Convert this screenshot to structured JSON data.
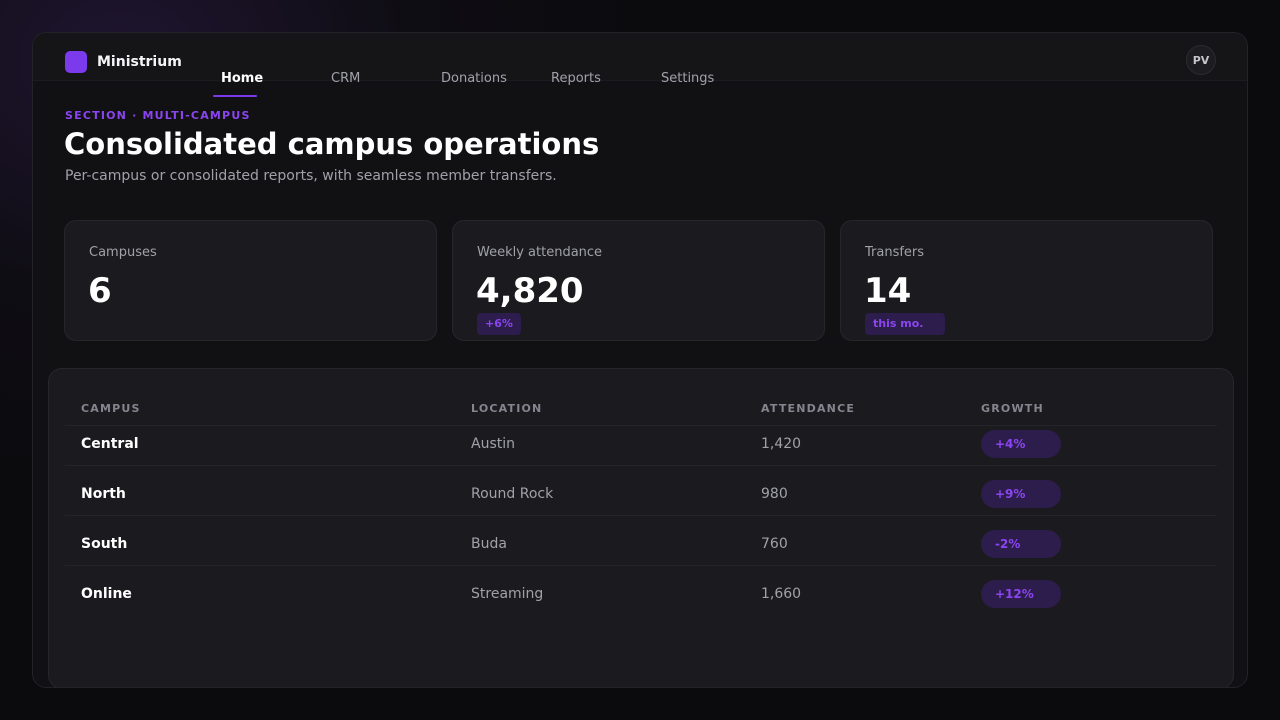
{
  "brand": {
    "name": "Ministrium"
  },
  "nav": {
    "items": [
      {
        "label": "Home",
        "active": true
      },
      {
        "label": "CRM",
        "active": false
      },
      {
        "label": "Donations",
        "active": false
      },
      {
        "label": "Reports",
        "active": false
      },
      {
        "label": "Settings",
        "active": false
      }
    ]
  },
  "user": {
    "initials": "PV"
  },
  "header": {
    "eyebrow": "SECTION · MULTI-CAMPUS",
    "title": "Consolidated campus operations",
    "subtitle": "Per-campus or consolidated reports, with seamless member transfers."
  },
  "stats": [
    {
      "label": "Campuses",
      "value": "6",
      "badge": ""
    },
    {
      "label": "Weekly attendance",
      "value": "4,820",
      "badge": "+6%"
    },
    {
      "label": "Transfers",
      "value": "14",
      "badge": "this mo."
    }
  ],
  "table": {
    "columns": [
      "CAMPUS",
      "LOCATION",
      "ATTENDANCE",
      "GROWTH"
    ],
    "rows": [
      {
        "campus": "Central",
        "location": "Austin",
        "attendance": "1,420",
        "growth": "+4%"
      },
      {
        "campus": "North",
        "location": "Round Rock",
        "attendance": "980",
        "growth": "+9%"
      },
      {
        "campus": "South",
        "location": "Buda",
        "attendance": "760",
        "growth": "-2%"
      },
      {
        "campus": "Online",
        "location": "Streaming",
        "attendance": "1,660",
        "growth": "+12%"
      }
    ]
  },
  "colors": {
    "accent": "#7c3aed",
    "accent_text": "#8b45f0",
    "pill_bg": "#2d1d4d",
    "background": "#111114",
    "card": "#1b1b1f"
  }
}
